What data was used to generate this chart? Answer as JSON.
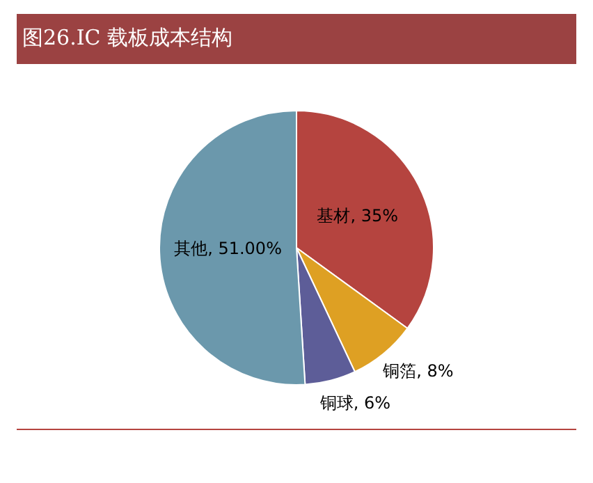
{
  "chart_data": {
    "type": "pie",
    "title": "图26.IC 载板成本结构",
    "categories": [
      "基材",
      "铜箔",
      "铜球",
      "其他"
    ],
    "values": [
      35,
      8,
      6,
      51
    ],
    "value_labels": [
      "35%",
      "8%",
      "6%",
      "51.00%"
    ],
    "colors": [
      "#b5443f",
      "#dea023",
      "#5d5d98",
      "#6b98ac"
    ],
    "legend": false
  }
}
